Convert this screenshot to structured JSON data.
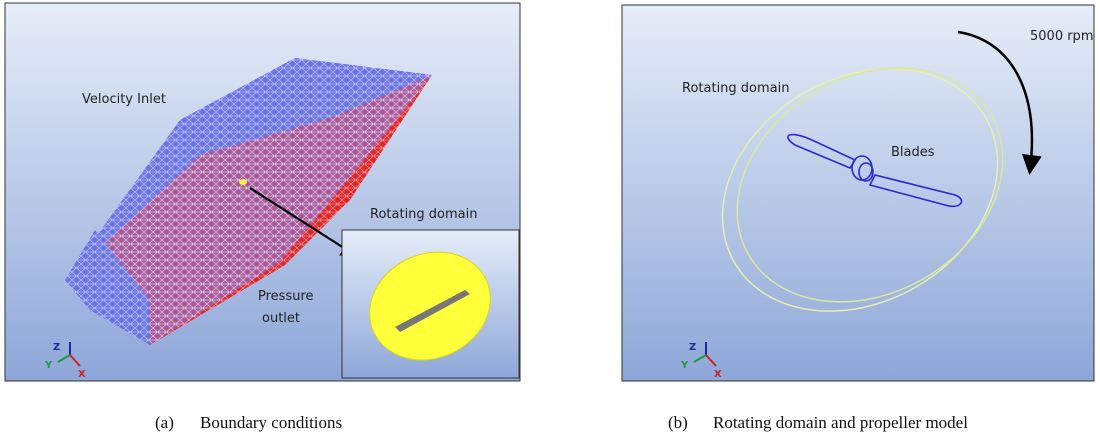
{
  "panels": [
    {
      "labels": {
        "inlet": "Velocity Inlet",
        "inset_title": "Rotating domain",
        "outlet_line1": "Pressure",
        "outlet_line2": "outlet"
      },
      "triad": {
        "z": "Z",
        "y": "Y",
        "x": "X"
      },
      "caption": {
        "tag": "(a)",
        "text": "Boundary conditions"
      }
    },
    {
      "labels": {
        "speed": "5000 rpm",
        "domain": "Rotating domain",
        "blades": "Blades"
      },
      "triad": {
        "z": "Z",
        "y": "Y",
        "x": "X"
      },
      "caption": {
        "tag": "(b)",
        "text": "Rotating domain and propeller model"
      }
    }
  ]
}
